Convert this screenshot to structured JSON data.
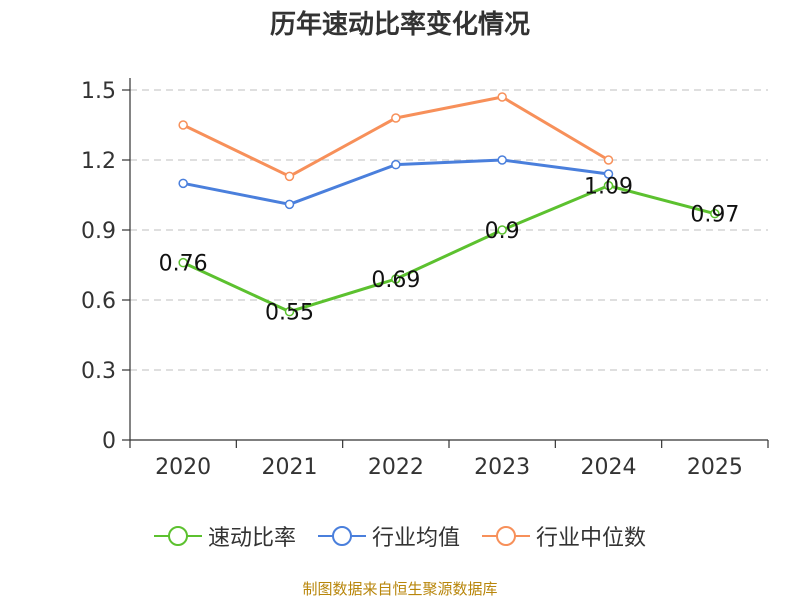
{
  "chart_data": {
    "type": "line",
    "title": "历年速动比率变化情况",
    "categories": [
      "2020",
      "2021",
      "2022",
      "2023",
      "2024",
      "2025"
    ],
    "ylim": [
      0,
      1.5
    ],
    "yticks": [
      "0",
      "0.3",
      "0.6",
      "0.9",
      "1.2",
      "1.5"
    ],
    "ytick_values": [
      0,
      0.3,
      0.6,
      0.9,
      1.2,
      1.5
    ],
    "grid": true,
    "legend_position": "bottom",
    "series": [
      {
        "name": "速动比率",
        "color": "#5cc12f",
        "values": [
          0.76,
          0.55,
          0.69,
          0.9,
          1.09,
          0.97
        ],
        "labels": [
          "0.76",
          "0.55",
          "0.69",
          "0.9",
          "1.09",
          "0.97"
        ]
      },
      {
        "name": "行业均值",
        "color": "#4a7fdc",
        "values": [
          1.1,
          1.01,
          1.18,
          1.2,
          1.14,
          null
        ]
      },
      {
        "name": "行业中位数",
        "color": "#f7905a",
        "values": [
          1.35,
          1.13,
          1.38,
          1.47,
          1.2,
          null
        ]
      }
    ]
  },
  "source": "制图数据来自恒生聚源数据库"
}
